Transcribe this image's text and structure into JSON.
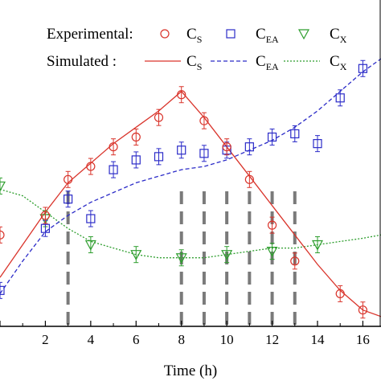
{
  "chart_data": {
    "type": "scatter",
    "xlabel": "Time (h)",
    "ylabel": "",
    "xlim": [
      0,
      16.8
    ],
    "ylim": [
      0,
      1.0
    ],
    "x_ticks": [
      0,
      2,
      4,
      6,
      8,
      10,
      12,
      14,
      16
    ],
    "x_tick_labels": [
      "",
      "2",
      "4",
      "6",
      "8",
      "10",
      "12",
      "14",
      "16"
    ],
    "grid": false,
    "legend": {
      "placement": "top",
      "row1_label": "Experimental:",
      "row2_label": "Simulated :",
      "entries": [
        {
          "key": "s",
          "base": "C",
          "sub": "S"
        },
        {
          "key": "ea",
          "base": "C",
          "sub": "EA"
        },
        {
          "key": "x",
          "base": "C",
          "sub": "X"
        }
      ]
    },
    "colors": {
      "s": "#d9342b",
      "ea": "#2b2bc8",
      "x": "#2e9e2e"
    },
    "vertical_markers": [
      3,
      8,
      9,
      10,
      11,
      12,
      13
    ],
    "experimental": {
      "s": {
        "marker": "circle",
        "x": [
          0,
          2,
          3,
          4,
          5,
          6,
          7,
          8,
          9,
          10,
          11,
          12,
          13,
          15,
          16
        ],
        "y": [
          0.28,
          0.34,
          0.45,
          0.49,
          0.55,
          0.58,
          0.64,
          0.71,
          0.63,
          0.55,
          0.45,
          0.31,
          0.2,
          0.1,
          0.05
        ]
      },
      "ea": {
        "marker": "square",
        "x": [
          0,
          2,
          3,
          4,
          5,
          6,
          7,
          8,
          9,
          10,
          11,
          12,
          13,
          14,
          15,
          16
        ],
        "y": [
          0.11,
          0.3,
          0.39,
          0.33,
          0.48,
          0.51,
          0.52,
          0.54,
          0.53,
          0.54,
          0.55,
          0.58,
          0.59,
          0.56,
          0.7,
          0.79
        ]
      },
      "x": {
        "marker": "triangle-down",
        "x": [
          0,
          2,
          4,
          6,
          8,
          10,
          12,
          14
        ],
        "y": [
          0.43,
          0.33,
          0.25,
          0.22,
          0.21,
          0.22,
          0.23,
          0.25
        ]
      }
    },
    "simulated": {
      "s": {
        "style": "solid",
        "x": [
          0,
          1,
          2,
          3,
          4,
          5,
          6,
          7,
          8,
          9,
          10,
          11,
          12,
          13,
          14,
          15,
          16,
          16.8
        ],
        "y": [
          0.15,
          0.25,
          0.35,
          0.44,
          0.5,
          0.56,
          0.61,
          0.66,
          0.72,
          0.64,
          0.55,
          0.46,
          0.37,
          0.28,
          0.19,
          0.11,
          0.05,
          0.03
        ]
      },
      "ea": {
        "style": "dashed",
        "x": [
          0,
          1,
          2,
          3,
          4,
          5,
          6,
          7,
          8,
          9,
          10,
          11,
          12,
          13,
          14,
          15,
          16,
          16.8
        ],
        "y": [
          0.1,
          0.2,
          0.29,
          0.34,
          0.38,
          0.41,
          0.44,
          0.46,
          0.48,
          0.49,
          0.51,
          0.54,
          0.57,
          0.61,
          0.66,
          0.72,
          0.78,
          0.82
        ]
      },
      "x": {
        "style": "dotted",
        "x": [
          0,
          1,
          2,
          3,
          4,
          5,
          6,
          7,
          8,
          9,
          10,
          11,
          12,
          13,
          14,
          15,
          16,
          16.8
        ],
        "y": [
          0.42,
          0.4,
          0.35,
          0.3,
          0.26,
          0.24,
          0.22,
          0.21,
          0.21,
          0.21,
          0.22,
          0.23,
          0.24,
          0.24,
          0.25,
          0.26,
          0.27,
          0.28
        ]
      }
    }
  }
}
